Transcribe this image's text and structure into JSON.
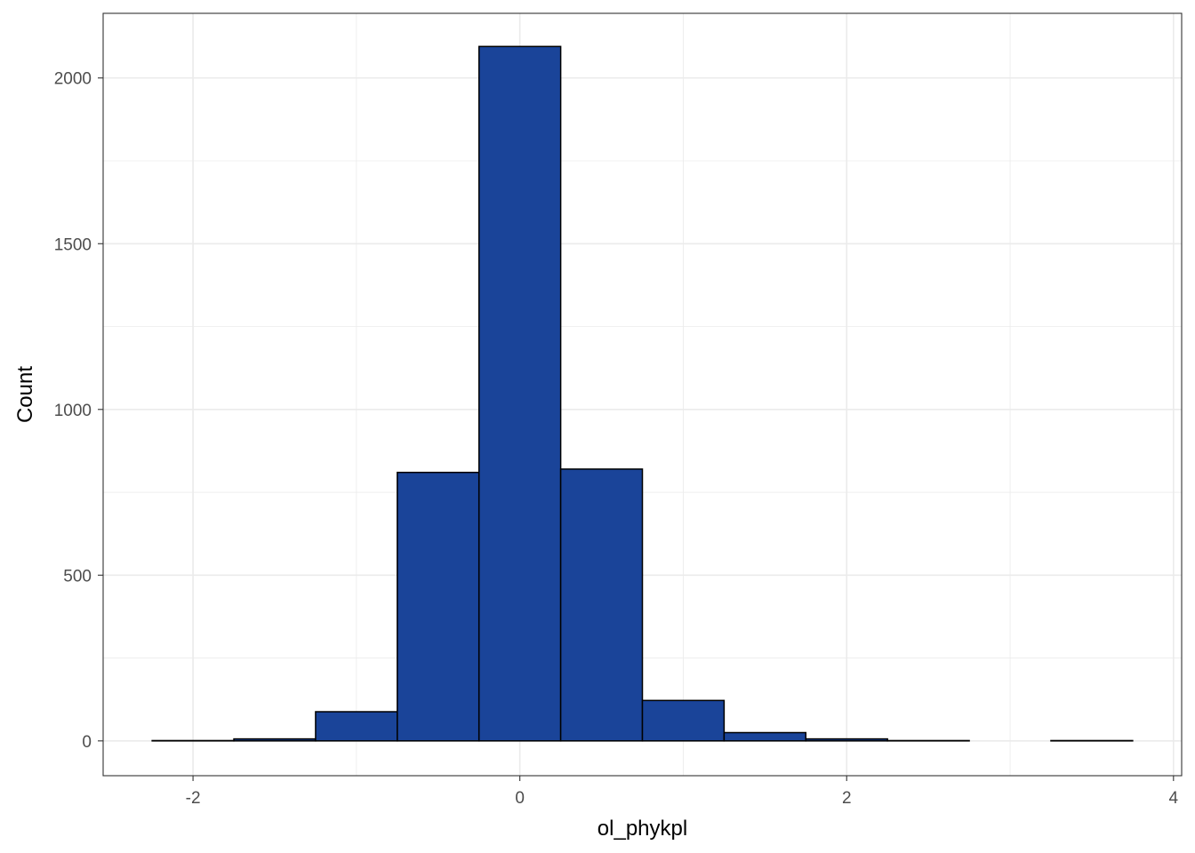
{
  "chart_data": {
    "type": "bar",
    "subtype": "histogram",
    "title": "",
    "xlabel": "ol_phykpl",
    "ylabel": "Count",
    "bin_width": 0.5,
    "bins": [
      {
        "x0": -2.25,
        "x1": -1.75,
        "count": 1
      },
      {
        "x0": -1.75,
        "x1": -1.25,
        "count": 6
      },
      {
        "x0": -1.25,
        "x1": -0.75,
        "count": 88
      },
      {
        "x0": -0.75,
        "x1": -0.25,
        "count": 810
      },
      {
        "x0": -0.25,
        "x1": 0.25,
        "count": 2095
      },
      {
        "x0": 0.25,
        "x1": 0.75,
        "count": 820
      },
      {
        "x0": 0.75,
        "x1": 1.25,
        "count": 122
      },
      {
        "x0": 1.25,
        "x1": 1.75,
        "count": 25
      },
      {
        "x0": 1.75,
        "x1": 2.25,
        "count": 6
      },
      {
        "x0": 2.25,
        "x1": 2.75,
        "count": 1
      },
      {
        "x0": 2.75,
        "x1": 3.25,
        "count": 0
      },
      {
        "x0": 3.25,
        "x1": 3.75,
        "count": 1
      }
    ],
    "xlim": [
      -2.55,
      4.05
    ],
    "ylim": [
      -105,
      2195
    ],
    "x_ticks": [
      -2,
      0,
      2,
      4
    ],
    "x_tick_labels": [
      "-2",
      "0",
      "2",
      "4"
    ],
    "y_ticks": [
      0,
      500,
      1000,
      1500,
      2000
    ],
    "y_tick_labels": [
      "0",
      "500",
      "1000",
      "1500",
      "2000"
    ],
    "x_minor_ticks": [
      -1,
      1,
      3
    ],
    "y_minor_ticks": [
      250,
      750,
      1250,
      1750
    ],
    "grid": true,
    "legend": "none",
    "colors": {
      "fill": "#1a4499",
      "outline": "#000000",
      "grid": "#ebebeb",
      "panel_border": "#333333"
    }
  }
}
